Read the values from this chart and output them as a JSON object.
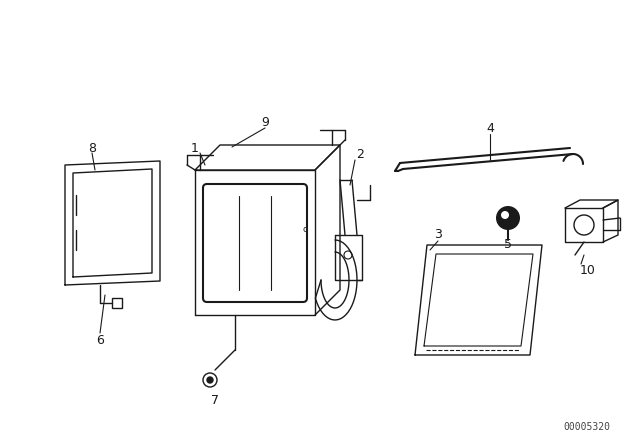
{
  "bg_color": "#ffffff",
  "line_color": "#1a1a1a",
  "label_color": "#1a1a1a",
  "watermark": "00005320",
  "figsize": [
    6.4,
    4.48
  ],
  "dpi": 100
}
